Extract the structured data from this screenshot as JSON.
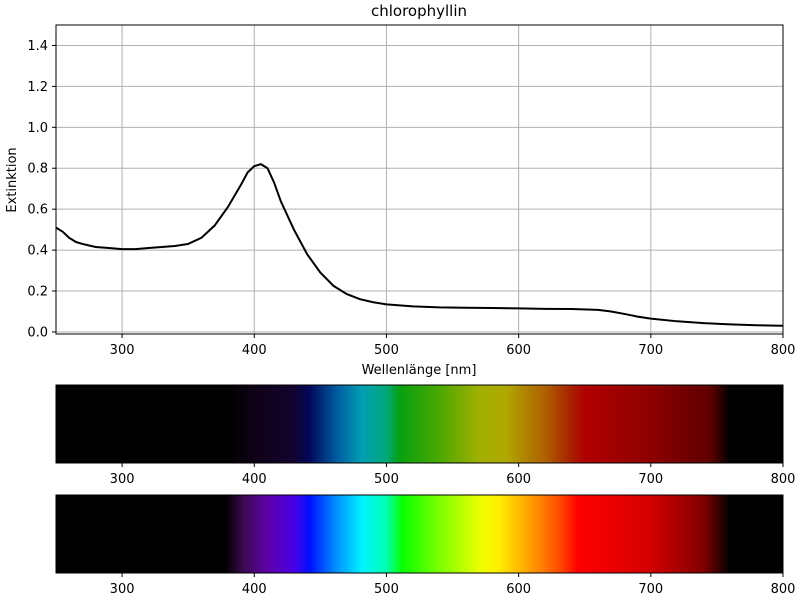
{
  "chart_data": [
    {
      "type": "line",
      "title": "chlorophyllin",
      "xlabel": "Wellenlänge [nm]",
      "ylabel": "Extinktion",
      "xlim": [
        250,
        800
      ],
      "ylim": [
        -0.01,
        1.5
      ],
      "xticks": [
        300,
        400,
        500,
        600,
        700,
        800
      ],
      "xtick_labels": [
        "300",
        "400",
        "500",
        "600",
        "700",
        "800"
      ],
      "yticks": [
        0.0,
        0.2,
        0.4,
        0.6,
        0.8,
        1.0,
        1.2,
        1.4
      ],
      "ytick_labels": [
        "0.0",
        "0.2",
        "0.4",
        "0.6",
        "0.8",
        "1.0",
        "1.2",
        "1.4"
      ],
      "grid": true,
      "line_color": "#000000",
      "series": [
        {
          "x": [
            250,
            255,
            260,
            265,
            270,
            280,
            290,
            300,
            310,
            320,
            330,
            340,
            350,
            360,
            370,
            380,
            390,
            395,
            400,
            405,
            410,
            415,
            420,
            430,
            440,
            450,
            460,
            470,
            480,
            490,
            500,
            520,
            540,
            560,
            580,
            600,
            620,
            640,
            660,
            670,
            680,
            690,
            700,
            720,
            740,
            760,
            780,
            800
          ],
          "y": [
            0.51,
            0.49,
            0.46,
            0.44,
            0.43,
            0.415,
            0.41,
            0.405,
            0.405,
            0.41,
            0.415,
            0.42,
            0.43,
            0.46,
            0.52,
            0.61,
            0.72,
            0.78,
            0.81,
            0.82,
            0.8,
            0.73,
            0.64,
            0.5,
            0.38,
            0.29,
            0.225,
            0.185,
            0.16,
            0.145,
            0.135,
            0.125,
            0.12,
            0.118,
            0.117,
            0.115,
            0.113,
            0.112,
            0.108,
            0.1,
            0.088,
            0.075,
            0.065,
            0.052,
            0.043,
            0.037,
            0.033,
            0.03
          ]
        }
      ]
    },
    {
      "type": "heatmap",
      "description_role": "absorbed-spectrum-strip",
      "xlim": [
        250,
        800
      ],
      "xticks": [
        300,
        400,
        500,
        600,
        700,
        800
      ],
      "xtick_labels": [
        "300",
        "400",
        "500",
        "600",
        "700",
        "800"
      ],
      "stops": [
        {
          "x": 250,
          "color": "#000000"
        },
        {
          "x": 380,
          "color": "#000000"
        },
        {
          "x": 400,
          "color": "#0f0216"
        },
        {
          "x": 430,
          "color": "#120330"
        },
        {
          "x": 442,
          "color": "#02085a"
        },
        {
          "x": 462,
          "color": "#005aa0"
        },
        {
          "x": 482,
          "color": "#00a0b4"
        },
        {
          "x": 500,
          "color": "#00a878"
        },
        {
          "x": 510,
          "color": "#07a010"
        },
        {
          "x": 540,
          "color": "#4aa800"
        },
        {
          "x": 570,
          "color": "#a0b000"
        },
        {
          "x": 590,
          "color": "#b0a800"
        },
        {
          "x": 620,
          "color": "#b06000"
        },
        {
          "x": 640,
          "color": "#a82000"
        },
        {
          "x": 650,
          "color": "#b00000"
        },
        {
          "x": 700,
          "color": "#8e0000"
        },
        {
          "x": 745,
          "color": "#5e0000"
        },
        {
          "x": 760,
          "color": "#000000"
        },
        {
          "x": 800,
          "color": "#000000"
        }
      ]
    },
    {
      "type": "heatmap",
      "description_role": "visible-spectrum-strip",
      "xlim": [
        250,
        800
      ],
      "xticks": [
        300,
        400,
        500,
        600,
        700,
        800
      ],
      "xtick_labels": [
        "300",
        "400",
        "500",
        "600",
        "700",
        "800"
      ],
      "stops": [
        {
          "x": 250,
          "color": "#000000"
        },
        {
          "x": 378,
          "color": "#000000"
        },
        {
          "x": 392,
          "color": "#3c0a50"
        },
        {
          "x": 410,
          "color": "#5e00a8"
        },
        {
          "x": 430,
          "color": "#4a00e6"
        },
        {
          "x": 442,
          "color": "#0010ff"
        },
        {
          "x": 462,
          "color": "#0090ff"
        },
        {
          "x": 482,
          "color": "#00f4ff"
        },
        {
          "x": 500,
          "color": "#00ffb0"
        },
        {
          "x": 512,
          "color": "#08ff00"
        },
        {
          "x": 540,
          "color": "#7cff00"
        },
        {
          "x": 572,
          "color": "#f0ff00"
        },
        {
          "x": 585,
          "color": "#ffee00"
        },
        {
          "x": 610,
          "color": "#ff9a00"
        },
        {
          "x": 630,
          "color": "#ff5000"
        },
        {
          "x": 645,
          "color": "#ff0000"
        },
        {
          "x": 700,
          "color": "#d40000"
        },
        {
          "x": 740,
          "color": "#800000"
        },
        {
          "x": 760,
          "color": "#000000"
        },
        {
          "x": 800,
          "color": "#000000"
        }
      ]
    }
  ]
}
